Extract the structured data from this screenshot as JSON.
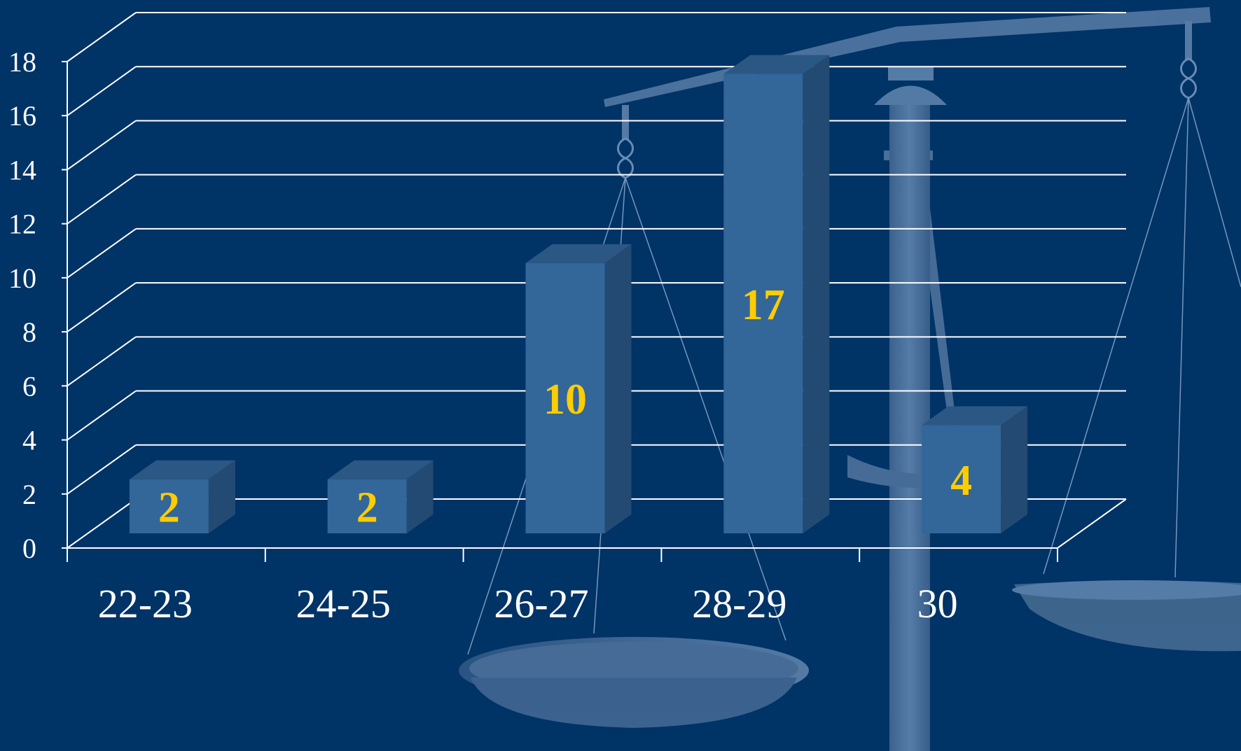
{
  "chart_data": {
    "type": "bar",
    "categories": [
      "22-23",
      "24-25",
      "26-27",
      "28-29",
      "30"
    ],
    "values": [
      2,
      2,
      10,
      17,
      4
    ],
    "data_labels": [
      "2",
      "2",
      "10",
      "17",
      "4"
    ],
    "yticks": [
      "0",
      "2",
      "4",
      "6",
      "8",
      "10",
      "12",
      "14",
      "16",
      "18"
    ],
    "ylim": [
      0,
      18
    ],
    "title": "",
    "xlabel": "",
    "ylabel": "",
    "grid": true,
    "legend": "none"
  },
  "colors": {
    "background": "#003366",
    "bar_front": "#336699",
    "bar_top": "#2b5784",
    "bar_side": "#234a72",
    "label_gold": "#ffcc00",
    "axis_text": "#ffffff",
    "gridline": "#ffffff",
    "scale_fill": "#4a6f9a"
  },
  "background_image": {
    "icon": "balance-scale-icon"
  }
}
